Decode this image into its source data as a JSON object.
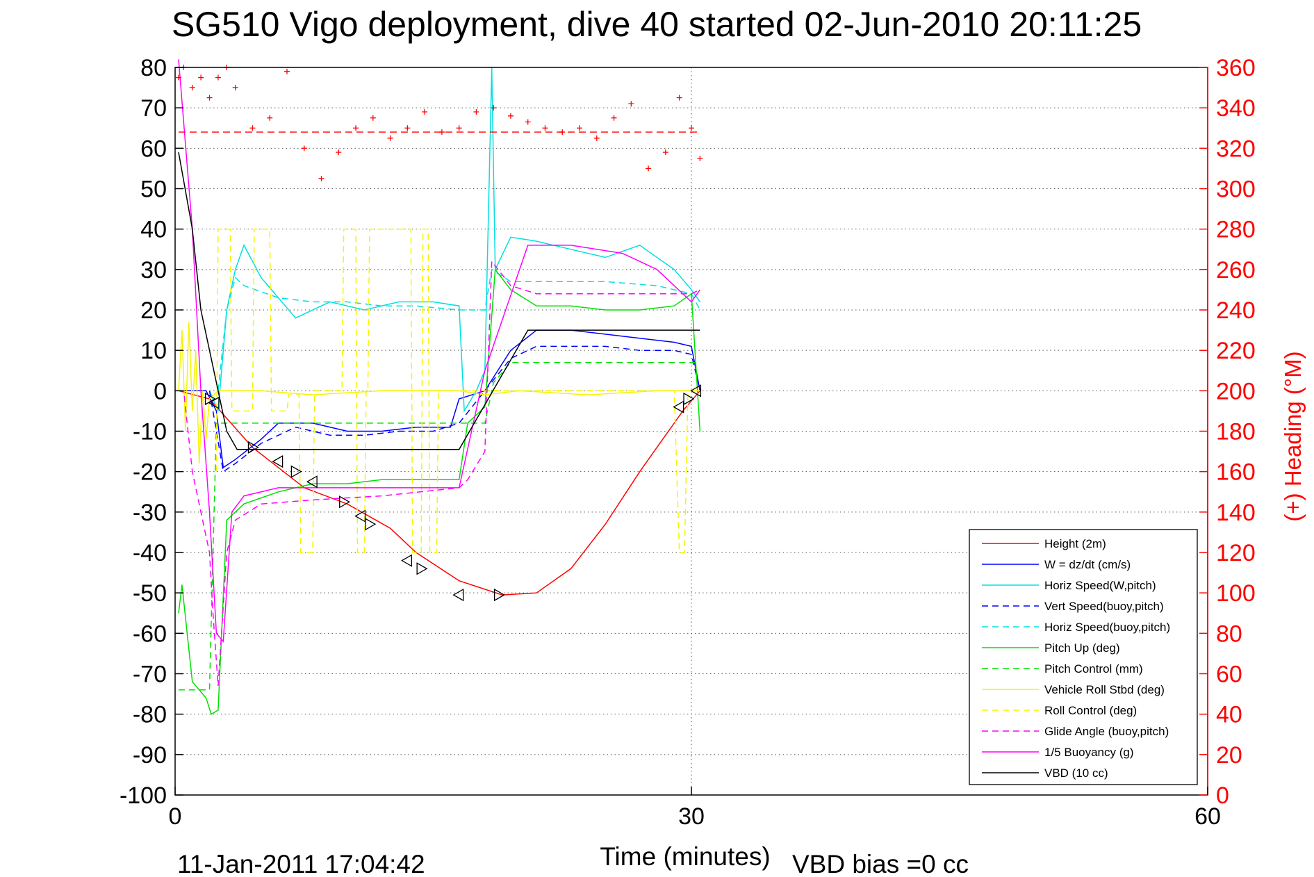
{
  "chart_data": {
    "type": "line",
    "title": "SG510 Vigo deployment, dive 40 started 02-Jun-2010 20:11:25",
    "xlabel": "Time (minutes)",
    "ylabel_right": "(+) Heading (°M)",
    "footer_left": "11-Jan-2011 17:04:42",
    "footer_right": "VBD bias =0 cc",
    "xlim": [
      0,
      60
    ],
    "ylim": [
      -100,
      80
    ],
    "ylim_right": [
      0,
      360
    ],
    "xticks": [
      "0",
      "30",
      "60"
    ],
    "yticks": [
      "80",
      "70",
      "60",
      "50",
      "40",
      "30",
      "20",
      "10",
      "0",
      "-10",
      "-20",
      "-30",
      "-40",
      "-50",
      "-60",
      "-70",
      "-80",
      "-90",
      "-100"
    ],
    "yticks_right": [
      "360",
      "340",
      "320",
      "300",
      "280",
      "260",
      "240",
      "220",
      "200",
      "180",
      "160",
      "140",
      "120",
      "100",
      "80",
      "60",
      "40",
      "20",
      "0"
    ],
    "grid": true,
    "legend_position": "bottom-right",
    "series": [
      {
        "name": "Height (2m)",
        "color": "#ff0000",
        "dash": false,
        "x": [
          0.2,
          2.0,
          4.5,
          6.0,
          7.5,
          10.0,
          12.5,
          14.0,
          16.5,
          19.0,
          21.0,
          23.0,
          25.0,
          27.0,
          29.5,
          30.5
        ],
        "y": [
          0,
          -2,
          -14,
          -19,
          -24,
          -28,
          -34,
          -40,
          -47,
          -50.5,
          -50,
          -44,
          -33,
          -20,
          -5,
          0
        ]
      },
      {
        "name": "W = dz/dt (cm/s)",
        "color": "#0000ff",
        "dash": false,
        "x": [
          0,
          1.8,
          2.4,
          2.8,
          3.5,
          5,
          6,
          8,
          10,
          12,
          14,
          16,
          16.5,
          18,
          19.5,
          21,
          23,
          25,
          27,
          29,
          30,
          30.5
        ],
        "y": [
          0,
          0,
          -5,
          -19,
          -17,
          -12,
          -8,
          -8,
          -10,
          -10,
          -9,
          -9,
          -2,
          0,
          10,
          15,
          15,
          14,
          13,
          12,
          11,
          0
        ]
      },
      {
        "name": "Horiz Speed(W,pitch)",
        "color": "#00e0e0",
        "dash": false,
        "x": [
          2.0,
          2.5,
          3.0,
          3.5,
          4.0,
          5,
          7,
          9,
          11,
          13,
          15,
          16.5,
          16.8,
          17.5,
          18.0,
          18.4,
          18.6,
          19.5,
          21,
          23,
          25,
          27,
          29,
          30,
          30.5
        ],
        "y": [
          0,
          -5,
          20,
          30,
          36,
          28,
          18,
          22,
          20,
          22,
          22,
          21,
          -5,
          0,
          5,
          80,
          30,
          38,
          37,
          35,
          33,
          36,
          30,
          25,
          22
        ]
      },
      {
        "name": "Vert Speed(buoy,pitch)",
        "color": "#0000ff",
        "dash": true,
        "x": [
          2.0,
          2.4,
          2.8,
          3.5,
          5,
          7,
          9,
          11,
          13,
          15,
          16.5,
          18,
          19.5,
          21,
          23,
          25,
          27,
          29,
          30,
          30.5
        ],
        "y": [
          0,
          -10,
          -20,
          -18,
          -13,
          -9,
          -11,
          -11,
          -10,
          -10,
          -8,
          0,
          8,
          11,
          11,
          11,
          10,
          10,
          9,
          0
        ]
      },
      {
        "name": "Horiz Speed(buoy,pitch)",
        "color": "#00e0e0",
        "dash": true,
        "x": [
          2.5,
          3.0,
          3.5,
          4,
          6,
          8,
          10,
          12,
          14,
          16.5,
          18.0,
          18.4,
          19.5,
          21,
          25,
          28,
          30,
          30.5
        ],
        "y": [
          0,
          20,
          28,
          26,
          23,
          22,
          22,
          21,
          21,
          20,
          20,
          30,
          27,
          27,
          27,
          26,
          24,
          20
        ]
      },
      {
        "name": "Pitch Up (deg)",
        "color": "#00e000",
        "dash": false,
        "x": [
          0.2,
          0.4,
          1.0,
          1.8,
          2.1,
          2.5,
          3.0,
          4,
          6,
          8,
          10,
          12,
          14,
          16.5,
          17.0,
          18.0,
          18.6,
          19.5,
          21,
          23,
          25,
          27,
          29,
          30,
          30.5
        ],
        "y": [
          -55,
          -48,
          -72,
          -76,
          -80,
          -79,
          -32,
          -28,
          -25,
          -23,
          -23,
          -22,
          -22,
          -22,
          -8,
          -4,
          30,
          25,
          21,
          21,
          20,
          20,
          21,
          24,
          -10
        ]
      },
      {
        "name": "Pitch Control (mm)",
        "color": "#00e000",
        "dash": true,
        "x": [
          0.2,
          2.0,
          2.4,
          3.0,
          4,
          8,
          12,
          16.5,
          18.0,
          18.5,
          19.5,
          30.5
        ],
        "y": [
          -74,
          -74,
          -8,
          -8,
          -8,
          -8,
          -8,
          -8,
          -8,
          2,
          7,
          7
        ]
      },
      {
        "name": "Vehicle Roll Stbd (deg)",
        "color": "#f5f500",
        "dash": false,
        "x": [
          0.2,
          0.4,
          0.6,
          0.8,
          1.0,
          1.2,
          1.4,
          1.6,
          1.8,
          2.0,
          2.5,
          3,
          5,
          8,
          12,
          16.5,
          18,
          20,
          24,
          28,
          29.5,
          30.5
        ],
        "y": [
          0,
          15,
          -10,
          17,
          -5,
          10,
          -18,
          0,
          -12,
          -2,
          0,
          0,
          0,
          -1,
          0,
          0,
          -1,
          0,
          -1,
          0,
          0,
          0
        ]
      },
      {
        "name": "Roll Control (deg)",
        "color": "#f5f500",
        "dash": true,
        "x": [
          2.4,
          2.5,
          3.2,
          3.3,
          4.5,
          4.6,
          5.5,
          5.6,
          6.5,
          6.6,
          7.2,
          7.3,
          8.0,
          8.1,
          9.7,
          9.8,
          10.5,
          10.6,
          11.0,
          11.1,
          11.2,
          11.3,
          13.7,
          13.8,
          14.3,
          14.4,
          14.7,
          14.8,
          15.2,
          15.3,
          17.0,
          28.5,
          29.0,
          29.3,
          29.6,
          29.8
        ],
        "y": [
          -20,
          40,
          40,
          -5,
          -5,
          40,
          40,
          -5,
          -5,
          -1,
          -1,
          -40,
          -40,
          0,
          0,
          40,
          40,
          -40,
          -40,
          0,
          0,
          40,
          40,
          -40,
          -40,
          40,
          40,
          -40,
          -40,
          0,
          0,
          0,
          0,
          -40,
          -40,
          0
        ]
      },
      {
        "name": "Glide Angle (buoy,pitch)",
        "color": "#ff00ff",
        "dash": true,
        "x": [
          0.2,
          0.5,
          1.0,
          1.5,
          2.0,
          2.2,
          2.5,
          3.0,
          3.5,
          5,
          8,
          12,
          16.5,
          17.0,
          18.0,
          18.4,
          19.5,
          21,
          25,
          29,
          30,
          30.5
        ],
        "y": [
          0,
          0,
          -20,
          -30,
          -40,
          -55,
          -73,
          -40,
          -32,
          -28,
          -27,
          -26,
          -24,
          -22,
          -15,
          32,
          26,
          24,
          24,
          24,
          24,
          25
        ]
      },
      {
        "name": "1/5 Buoyancy (g)",
        "color": "#ff00ff",
        "dash": false,
        "x": [
          0.2,
          1.0,
          1.5,
          2.0,
          2.4,
          2.8,
          3.3,
          4,
          6,
          8,
          10,
          12,
          14,
          16.5,
          18,
          20.5,
          23,
          26,
          28,
          30,
          30.5
        ],
        "y": [
          82,
          40,
          0,
          -30,
          -60,
          -62,
          -30,
          -26,
          -24,
          -24,
          -24,
          -24,
          -24,
          -24,
          5,
          36,
          36,
          34,
          30,
          22,
          25
        ]
      },
      {
        "name": "VBD (10 cc)",
        "color": "#000000",
        "dash": false,
        "x": [
          0.2,
          1.0,
          1.5,
          2.5,
          3.0,
          3.6,
          4.0,
          16.5,
          20.5,
          30,
          30.5
        ],
        "y": [
          59,
          40,
          20,
          0,
          -10,
          -14.5,
          -14.5,
          -14.5,
          15,
          15,
          15
        ]
      }
    ],
    "heading": {
      "name": "Heading",
      "marker": "+",
      "color": "#ff0000",
      "x": [
        0.2,
        0.5,
        1.0,
        1.5,
        2.0,
        2.5,
        3.0,
        3.5,
        4.5,
        5.5,
        6.5,
        7.5,
        8.5,
        9.5,
        10.5,
        11.5,
        12.5,
        13.5,
        14.5,
        15.5,
        16.5,
        17.5,
        18.5,
        19.5,
        20.5,
        21.5,
        22.5,
        23.5,
        24.5,
        25.5,
        26.5,
        27.5,
        28.5,
        29.3,
        30.0,
        30.5
      ],
      "y": [
        355,
        360,
        350,
        355,
        345,
        355,
        360,
        350,
        330,
        335,
        358,
        320,
        305,
        318,
        330,
        335,
        325,
        330,
        338,
        328,
        330,
        338,
        340,
        336,
        333,
        330,
        328,
        330,
        325,
        335,
        342,
        310,
        318,
        345,
        330,
        315
      ],
      "mean": 328
    },
    "legend": [
      "Height (2m)",
      "W = dz/dt (cm/s)",
      "Horiz Speed(W,pitch)",
      "Vert Speed(buoy,pitch)",
      "Horiz Speed(buoy,pitch)",
      "Pitch Up (deg)",
      "Pitch Control (mm)",
      "Vehicle Roll Stbd (deg)",
      "Roll Control (deg)",
      "Glide Angle (buoy,pitch)",
      "1/5 Buoyancy (g)",
      "VBD (10 cc)"
    ],
    "markers": {
      "x": [
        2.0,
        2.3,
        4.5,
        6.0,
        7.0,
        8.0,
        9.8,
        10.8,
        11.3,
        13.5,
        14.3,
        16.5,
        18.8,
        29.3,
        29.8,
        30.3
      ],
      "y": [
        -2,
        -3,
        -14,
        -17.5,
        -20,
        -22.5,
        -27.5,
        -31,
        -33,
        -42,
        -44,
        -50.5,
        -50.5,
        -4,
        -2,
        0
      ]
    }
  }
}
